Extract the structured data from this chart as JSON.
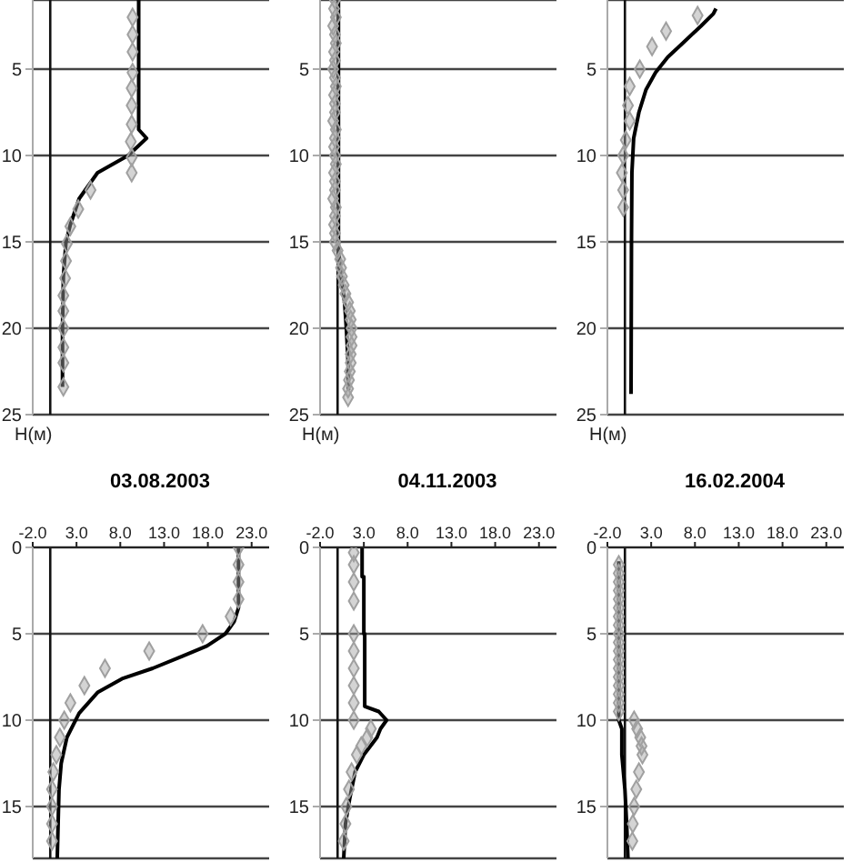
{
  "chart_data": [
    {
      "type": "line",
      "tick_labels": "y",
      "xlim": [
        -2,
        25
      ],
      "ylim": [
        25,
        1
      ],
      "yticks": [
        5,
        10,
        15,
        20,
        25
      ],
      "ylabel": "H(м)",
      "grid": "y",
      "ref_lines": [
        {
          "axis": "x",
          "value": 0
        }
      ],
      "series": [
        {
          "type": "line",
          "color": "#000000",
          "x": [
            10.1,
            10.1,
            10.1,
            11.0,
            8.9,
            5.4,
            3.3,
            2.3,
            1.8,
            1.5,
            1.4,
            1.4
          ],
          "values": [
            1,
            5,
            8.5,
            9,
            10,
            11,
            12.5,
            14,
            15,
            17,
            20,
            23.4
          ]
        },
        {
          "type": "scatter",
          "color": "#a0a0a0",
          "marker": "diamond",
          "x": [
            9.4,
            9.4,
            9.4,
            9.4,
            9.3,
            9.3,
            9.3,
            9.2,
            9.3,
            9.3,
            4.6,
            3.2,
            2.3,
            1.9,
            1.8,
            1.7,
            1.5,
            1.5,
            1.5,
            1.5,
            1.5,
            1.5
          ],
          "values": [
            2.0,
            3.0,
            4.0,
            5.2,
            6.1,
            7.1,
            8.2,
            9.2,
            10.1,
            11.0,
            12.0,
            13.1,
            14.1,
            15.1,
            16.1,
            17.1,
            18.1,
            19.0,
            20.0,
            21.1,
            22.0,
            23.4
          ]
        }
      ]
    },
    {
      "type": "line",
      "tick_labels": "y",
      "xlim": [
        -2,
        25
      ],
      "ylim": [
        25,
        1
      ],
      "yticks": [
        5,
        10,
        15,
        20,
        25
      ],
      "ylabel": "H(м)",
      "grid": "y",
      "ref_lines": [
        {
          "axis": "x",
          "value": 0
        }
      ],
      "series": [
        {
          "type": "line",
          "color": "#000000",
          "x": [
            0.1,
            0.1,
            0.1,
            0.4,
            0.8,
            1.0,
            1.2,
            1.25
          ],
          "values": [
            1,
            10,
            15.5,
            17,
            18.5,
            20,
            22,
            23.6
          ]
        },
        {
          "type": "scatter",
          "color": "#a0a0a0",
          "marker": "diamond",
          "x": [
            -0.3,
            -0.4,
            -0.2,
            -0.5,
            -0.3,
            -0.2,
            -0.4,
            -0.3,
            -0.5,
            -0.3,
            -0.2,
            -0.4,
            -0.3,
            -0.3,
            -0.5,
            -0.2,
            -0.3,
            -0.4,
            -0.3,
            -0.2,
            -0.4,
            -0.3,
            -0.3,
            -0.5,
            -0.2,
            -0.3,
            -0.4,
            -0.3,
            -0.3,
            0.0,
            0.3,
            0.4,
            0.5,
            0.7,
            0.9,
            1.2,
            1.4,
            1.5,
            1.6,
            1.6,
            1.6,
            1.5,
            1.5,
            1.4,
            1.3,
            1.2,
            1.2
          ],
          "values": [
            1,
            1.5,
            2,
            2.5,
            3,
            3.5,
            4,
            4.5,
            5,
            5.5,
            6,
            6.5,
            7,
            7.5,
            8,
            8.5,
            9,
            9.5,
            10,
            10.5,
            11,
            11.5,
            12,
            12.5,
            13,
            13.5,
            14,
            14.5,
            15,
            15.5,
            16,
            16.5,
            17,
            17.5,
            18,
            18.5,
            19,
            19.5,
            20,
            20.5,
            21,
            21.5,
            22,
            22.5,
            23,
            23.5,
            24
          ]
        }
      ]
    },
    {
      "type": "line",
      "tick_labels": "y",
      "xlim": [
        -2,
        25
      ],
      "ylim": [
        25,
        1
      ],
      "yticks": [
        5,
        10,
        15,
        20,
        25
      ],
      "ylabel": "H(м)",
      "grid": "y",
      "ref_lines": [
        {
          "axis": "x",
          "value": 0
        }
      ],
      "series": [
        {
          "type": "line",
          "color": "#000000",
          "x": [
            10.4,
            10.1,
            8.7,
            6.6,
            4.9,
            3.5,
            2.4,
            1.6,
            1.0,
            0.8,
            0.75,
            0.7
          ],
          "values": [
            1.5,
            1.8,
            2.5,
            3.5,
            4.3,
            5.2,
            6.2,
            7.5,
            9,
            11,
            15,
            23.8
          ]
        },
        {
          "type": "scatter",
          "color": "#a0a0a0",
          "marker": "diamond",
          "x": [
            8.3,
            4.7,
            3.1,
            1.7,
            0.55,
            0.35,
            0.55,
            0.1,
            -0.2,
            -0.35,
            -0.2,
            -0.2
          ],
          "values": [
            1.9,
            2.8,
            3.7,
            5.0,
            6.0,
            7.1,
            8.0,
            9.1,
            10.0,
            11.0,
            12.0,
            13.0
          ]
        }
      ]
    },
    {
      "type": "line",
      "title": "03.08.2003",
      "xlim": [
        -2,
        25
      ],
      "xticks": [
        {
          "value": -2,
          "label": "-2.0"
        },
        {
          "value": 3,
          "label": "3.0"
        },
        {
          "value": 8,
          "label": "8.0"
        },
        {
          "value": 13,
          "label": "13.0"
        },
        {
          "value": 18,
          "label": "18.0"
        },
        {
          "value": 23,
          "label": "23.0"
        }
      ],
      "ylim": [
        18,
        0
      ],
      "yticks": [
        0,
        5,
        10,
        15
      ],
      "grid": "y",
      "ref_lines": [
        {
          "axis": "x",
          "value": 0
        }
      ],
      "series": [
        {
          "type": "line",
          "color": "#000000",
          "x": [
            21.5,
            21.5,
            21.0,
            20.0,
            17.9,
            15.1,
            11.7,
            8.2,
            5.4,
            3.3,
            1.9,
            1.25,
            1.0,
            0.9,
            0.8
          ],
          "values": [
            0,
            3.5,
            4.3,
            5,
            5.7,
            6.3,
            7,
            7.6,
            8.4,
            9.6,
            11,
            12.5,
            14,
            16,
            18
          ]
        },
        {
          "type": "scatter",
          "color": "#a0a0a0",
          "marker": "diamond",
          "x": [
            21.5,
            21.5,
            21.5,
            21.5,
            20.6,
            17.4,
            11.3,
            6.25,
            3.9,
            2.3,
            1.6,
            1.1,
            0.7,
            0.35,
            0.2,
            0.2,
            0.2,
            0.2
          ],
          "values": [
            0,
            1,
            2,
            3,
            4,
            5,
            6,
            7,
            8,
            9,
            10,
            11,
            12,
            13,
            14,
            15,
            16,
            17
          ]
        }
      ]
    },
    {
      "type": "line",
      "title": "04.11.2003",
      "xlim": [
        -2,
        25
      ],
      "xticks": [
        {
          "value": -2,
          "label": "-2.0"
        },
        {
          "value": 3,
          "label": "3.0"
        },
        {
          "value": 8,
          "label": "8.0"
        },
        {
          "value": 13,
          "label": "13.0"
        },
        {
          "value": 18,
          "label": "18.0"
        },
        {
          "value": 23,
          "label": "23.0"
        }
      ],
      "ylim": [
        18,
        0
      ],
      "yticks": [
        0,
        5,
        10,
        15
      ],
      "grid": "y",
      "ref_lines": [
        {
          "axis": "x",
          "value": 0
        }
      ],
      "series": [
        {
          "type": "line",
          "color": "#000000",
          "x": [
            2.8,
            2.8,
            3.0,
            3.0,
            3.1,
            3.1,
            4.7,
            5.6,
            4.9,
            4.5,
            3.0,
            2.0,
            1.4,
            0.9,
            0.7
          ],
          "values": [
            0,
            1.7,
            1.7,
            5,
            5,
            9.2,
            9.5,
            10,
            10.5,
            11,
            12,
            13,
            14.5,
            16,
            18
          ]
        },
        {
          "type": "scatter",
          "color": "#a0a0a0",
          "marker": "diamond",
          "x": [
            1.85,
            1.85,
            1.85,
            1.85,
            1.85,
            1.85,
            1.85,
            1.85,
            1.85,
            1.85,
            3.8,
            3.4,
            2.7,
            2.2,
            1.6,
            1.3,
            1.0,
            0.9,
            0.7
          ],
          "values": [
            0.3,
            1.0,
            2.0,
            3.1,
            5,
            6,
            7,
            8,
            9,
            10,
            10.5,
            11,
            11.5,
            12,
            13,
            14,
            15,
            16,
            17
          ]
        }
      ]
    },
    {
      "type": "line",
      "title": "16.02.2004",
      "xlim": [
        -2,
        25
      ],
      "xticks": [
        {
          "value": -2,
          "label": "-2.0"
        },
        {
          "value": 3,
          "label": "3.0"
        },
        {
          "value": 8,
          "label": "8.0"
        },
        {
          "value": 13,
          "label": "13.0"
        },
        {
          "value": 18,
          "label": "18.0"
        },
        {
          "value": 23,
          "label": "23.0"
        }
      ],
      "ylim": [
        18,
        0
      ],
      "yticks": [
        0,
        5,
        10,
        15
      ],
      "grid": "y",
      "ref_lines": [
        {
          "axis": "x",
          "value": 0
        }
      ],
      "series": [
        {
          "type": "line",
          "color": "#000000",
          "x": [
            -0.7,
            -0.7,
            -0.35,
            -0.35,
            0,
            0.2,
            0.35
          ],
          "values": [
            0.8,
            10,
            10.5,
            12,
            14,
            16,
            18
          ]
        },
        {
          "type": "scatter",
          "color": "#a0a0a0",
          "marker": "diamond",
          "x": [
            -0.7,
            -0.7,
            -0.7,
            -0.7,
            -0.7,
            -0.7,
            -0.7,
            -0.7,
            -0.7,
            -0.7,
            -0.7,
            -0.7,
            -0.7,
            -0.7,
            -0.7,
            -0.7,
            -0.7,
            -0.7,
            1.05,
            1.4,
            1.75,
            1.9,
            2.0,
            1.6,
            1.3,
            1.05,
            0.9,
            0.85
          ],
          "values": [
            1,
            1.5,
            2,
            2.5,
            3,
            3.5,
            4,
            4.5,
            5,
            5.5,
            6,
            6.5,
            7,
            7.5,
            8,
            8.5,
            9,
            9.5,
            10,
            10.5,
            11,
            11.5,
            12,
            13,
            14,
            15,
            16,
            17
          ]
        }
      ]
    }
  ]
}
